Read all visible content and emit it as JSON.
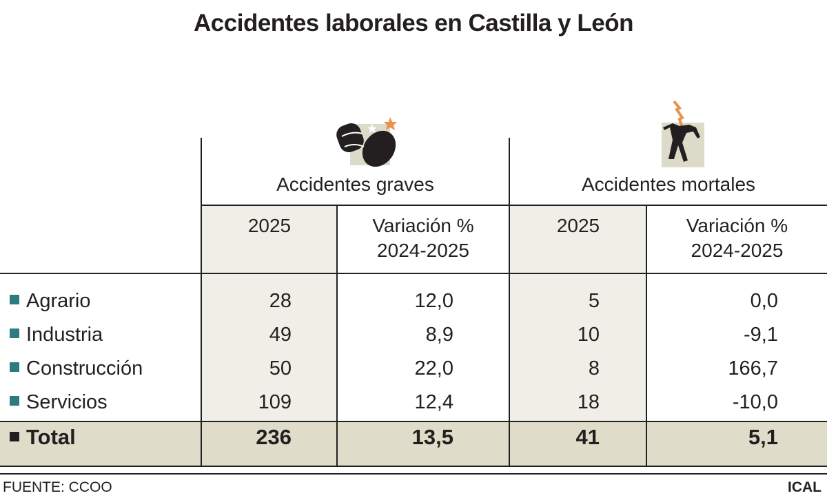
{
  "title": "Accidentes laborales en Castilla y León",
  "groups": {
    "graves": "Accidentes graves",
    "mortales": "Accidentes mortales"
  },
  "col_headers": {
    "year": "2025",
    "var_line1": "Variación %",
    "var_line2": "2024-2025"
  },
  "rows": [
    {
      "label": "Agrario",
      "graves": "28",
      "graves_var": "12,0",
      "mortales": "5",
      "mortales_var": "0,0"
    },
    {
      "label": "Industria",
      "graves": "49",
      "graves_var": "8,9",
      "mortales": "10",
      "mortales_var": "-9,1"
    },
    {
      "label": "Construcción",
      "graves": "50",
      "graves_var": "22,0",
      "mortales": "8",
      "mortales_var": "166,7"
    },
    {
      "label": "Servicios",
      "graves": "109",
      "graves_var": "12,4",
      "mortales": "18",
      "mortales_var": "-10,0"
    }
  ],
  "total": {
    "label": "Total",
    "graves": "236",
    "graves_var": "13,5",
    "mortales": "41",
    "mortales_var": "5,1"
  },
  "footer": {
    "source": "FUENTE: CCOO",
    "brand": "ICAL"
  },
  "colors": {
    "row_marker": "#2c7b7e",
    "shade": "#efeee7",
    "total_bg": "#dfddc9",
    "icon_bg": "#dcdac9",
    "accent": "#e8924a"
  }
}
